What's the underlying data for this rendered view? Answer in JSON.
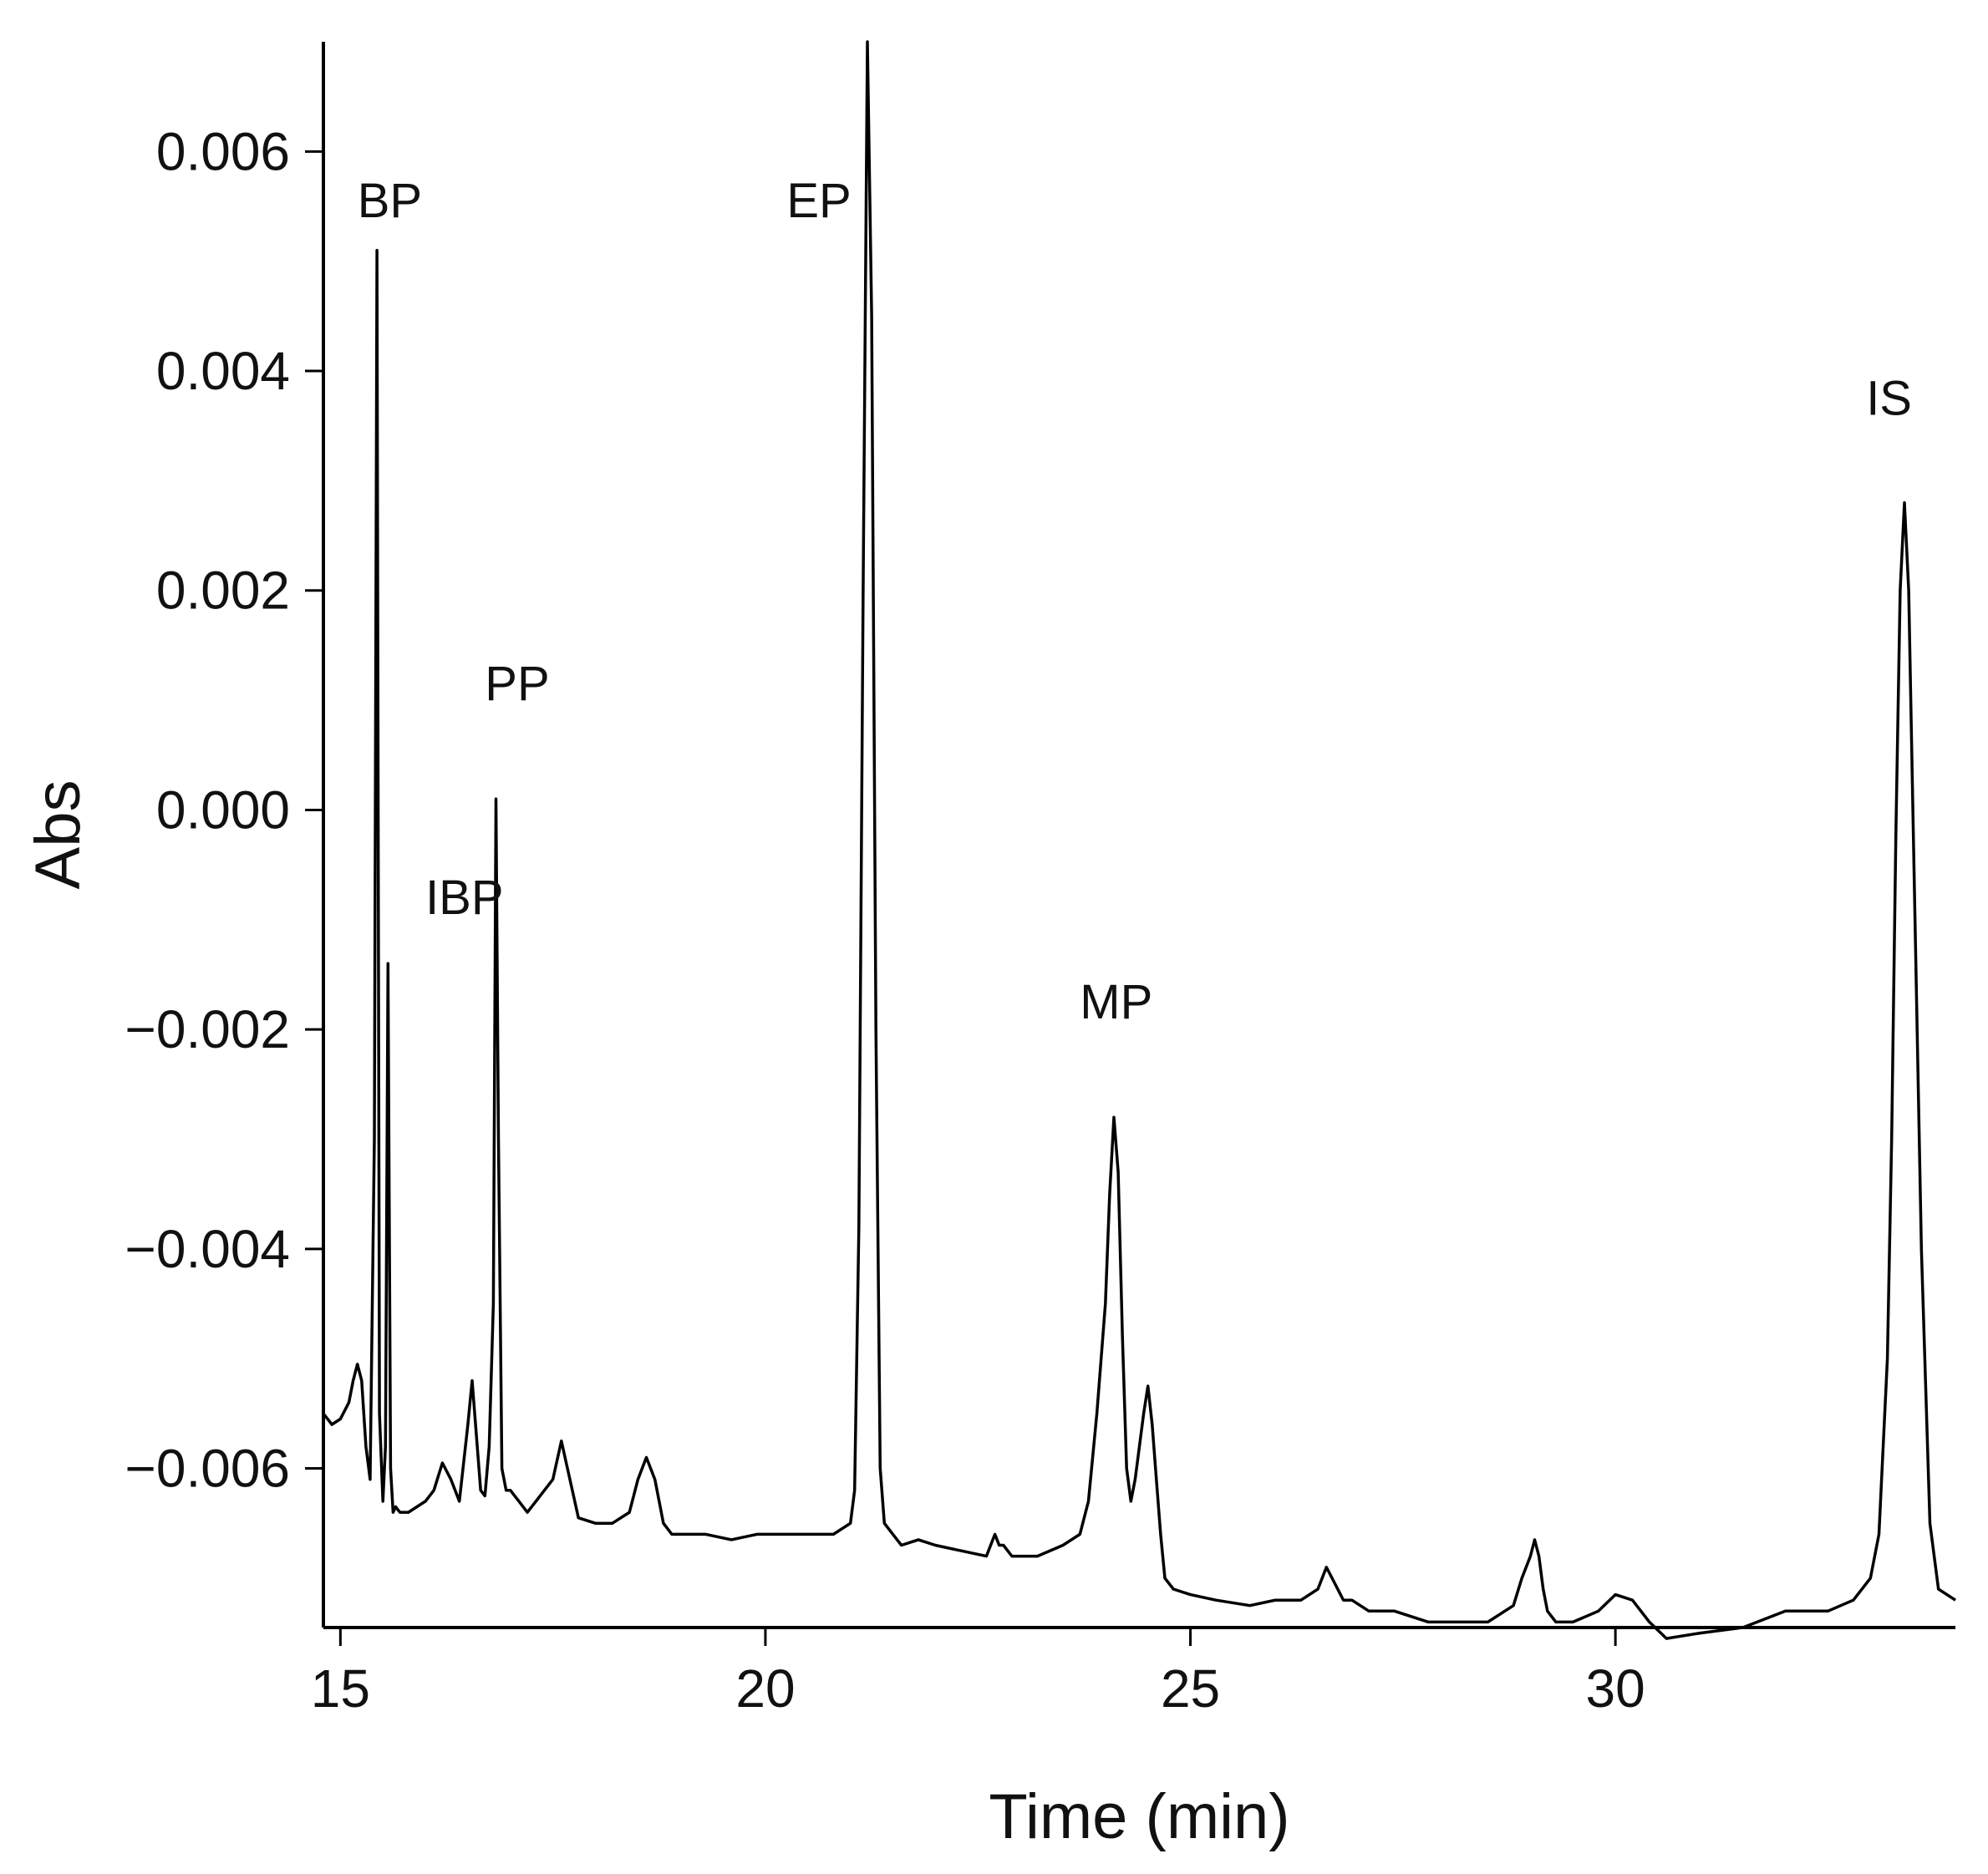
{
  "chart_data": {
    "type": "line",
    "title": "",
    "xlabel": "Time (min)",
    "ylabel": "Abs",
    "xlim": [
      14.8,
      34.0
    ],
    "ylim": [
      -0.00745,
      0.007
    ],
    "xticks": [
      15,
      20,
      25,
      30
    ],
    "xtick_labels": [
      "15",
      "20",
      "25",
      "30"
    ],
    "yticks": [
      0.006,
      0.004,
      0.002,
      0.0,
      -0.002,
      -0.004,
      -0.006
    ],
    "ytick_labels": [
      "0.006",
      "0.004",
      "0.002",
      "0.000",
      "−0.002",
      "−0.004",
      "−0.006"
    ],
    "grid": false,
    "legend": "none",
    "line_color": "#000000",
    "series": [
      {
        "x": [
          14.8,
          14.9,
          15.0,
          15.1,
          15.15,
          15.2,
          15.25,
          15.3,
          15.35,
          15.4,
          15.43,
          15.46,
          15.5,
          15.53,
          15.56,
          15.59,
          15.62,
          15.65,
          15.7,
          15.8,
          15.9,
          16.0,
          16.1,
          16.2,
          16.3,
          16.4,
          16.5,
          16.55,
          16.6,
          16.65,
          16.7,
          16.75,
          16.8,
          16.83,
          16.86,
          16.9,
          16.95,
          17.0,
          17.1,
          17.2,
          17.3,
          17.5,
          17.6,
          17.7,
          17.8,
          18.0,
          18.2,
          18.4,
          18.5,
          18.6,
          18.7,
          18.75,
          18.8,
          18.9,
          19.0,
          19.3,
          19.6,
          19.9,
          20.2,
          20.5,
          20.8,
          21.0,
          21.05,
          21.1,
          21.15,
          21.2,
          21.25,
          21.3,
          21.35,
          21.4,
          21.5,
          21.6,
          21.8,
          22.0,
          22.3,
          22.6,
          22.7,
          22.75,
          22.8,
          22.9,
          23.2,
          23.5,
          23.7,
          23.8,
          23.9,
          24.0,
          24.05,
          24.1,
          24.15,
          24.2,
          24.25,
          24.3,
          24.35,
          24.4,
          24.45,
          24.5,
          24.55,
          24.6,
          24.65,
          24.7,
          24.8,
          25.0,
          25.3,
          25.7,
          26.0,
          26.3,
          26.5,
          26.6,
          26.7,
          26.8,
          26.9,
          27.1,
          27.4,
          27.8,
          28.2,
          28.5,
          28.8,
          28.9,
          29.0,
          29.05,
          29.1,
          29.15,
          29.2,
          29.3,
          29.5,
          29.8,
          30.0,
          30.2,
          30.4,
          30.6,
          31.0,
          31.5,
          32.0,
          32.5,
          32.8,
          33.0,
          33.1,
          33.2,
          33.25,
          33.3,
          33.35,
          33.4,
          33.45,
          33.5,
          33.6,
          33.7,
          33.8,
          34.0
        ],
        "y": [
          -0.0055,
          -0.0056,
          -0.00555,
          -0.0054,
          -0.0052,
          -0.00505,
          -0.0052,
          -0.0058,
          -0.0061,
          -0.003,
          0.0051,
          -0.0055,
          -0.0063,
          -0.0058,
          -0.0014,
          -0.006,
          -0.0064,
          -0.00635,
          -0.0064,
          -0.0064,
          -0.00635,
          -0.0063,
          -0.0062,
          -0.00595,
          -0.0061,
          -0.0063,
          -0.0056,
          -0.0052,
          -0.0057,
          -0.0062,
          -0.00625,
          -0.0058,
          -0.0045,
          0.0001,
          -0.003,
          -0.006,
          -0.0062,
          -0.0062,
          -0.0063,
          -0.0064,
          -0.0063,
          -0.0061,
          -0.00575,
          -0.0061,
          -0.00645,
          -0.0065,
          -0.0065,
          -0.0064,
          -0.0061,
          -0.0059,
          -0.0061,
          -0.0063,
          -0.0065,
          -0.0066,
          -0.0066,
          -0.0066,
          -0.00665,
          -0.0066,
          -0.0066,
          -0.0066,
          -0.0066,
          -0.0065,
          -0.0062,
          -0.0038,
          0.002,
          0.007,
          0.0045,
          -0.002,
          -0.006,
          -0.0065,
          -0.0066,
          -0.0067,
          -0.00665,
          -0.0067,
          -0.00675,
          -0.0068,
          -0.0066,
          -0.0067,
          -0.0067,
          -0.0068,
          -0.0068,
          -0.0067,
          -0.0066,
          -0.0063,
          -0.0055,
          -0.0045,
          -0.0035,
          -0.0028,
          -0.0033,
          -0.0048,
          -0.006,
          -0.0063,
          -0.0061,
          -0.0058,
          -0.0055,
          -0.00525,
          -0.0056,
          -0.0061,
          -0.0066,
          -0.007,
          -0.0071,
          -0.00715,
          -0.0072,
          -0.00725,
          -0.0072,
          -0.0072,
          -0.0071,
          -0.0069,
          -0.00705,
          -0.0072,
          -0.0072,
          -0.0073,
          -0.0073,
          -0.0074,
          -0.0074,
          -0.0074,
          -0.00725,
          -0.007,
          -0.0068,
          -0.00665,
          -0.0068,
          -0.0071,
          -0.0073,
          -0.0074,
          -0.0074,
          -0.0073,
          -0.00715,
          -0.0072,
          -0.0074,
          -0.00755,
          -0.0075,
          -0.00745,
          -0.0073,
          -0.0073,
          -0.0072,
          -0.007,
          -0.0066,
          -0.005,
          -0.003,
          -0.0002,
          0.002,
          0.0028,
          0.002,
          0.0,
          -0.004,
          -0.0065,
          -0.0071,
          -0.0072
        ]
      }
    ],
    "annotations": [
      {
        "text": "BP",
        "x": 15.2,
        "y": 0.0054
      },
      {
        "text": "IBP",
        "x": 16.0,
        "y": -0.00095
      },
      {
        "text": "PP",
        "x": 16.7,
        "y": 0.001
      },
      {
        "text": "EP",
        "x": 20.25,
        "y": 0.0054
      },
      {
        "text": "MP",
        "x": 23.7,
        "y": -0.0019
      },
      {
        "text": "IS",
        "x": 32.95,
        "y": 0.0036
      }
    ]
  }
}
